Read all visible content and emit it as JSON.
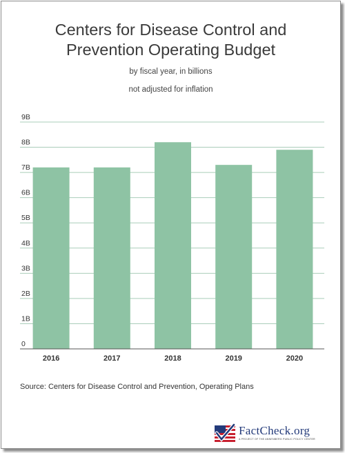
{
  "header": {
    "title_line1": "Centers for Disease Control and",
    "title_line2": "Prevention Operating Budget",
    "subtitle1": "by fiscal year, in billions",
    "subtitle2": "not adjusted for inflation"
  },
  "chart_data": {
    "type": "bar",
    "title": "Centers for Disease Control and Prevention Operating Budget",
    "categories": [
      "2016",
      "2017",
      "2018",
      "2019",
      "2020"
    ],
    "values": [
      7.2,
      7.2,
      8.2,
      7.3,
      7.9
    ],
    "y_ticks": [
      {
        "value": 0,
        "label": "0"
      },
      {
        "value": 1,
        "label": "1B"
      },
      {
        "value": 2,
        "label": "2B"
      },
      {
        "value": 3,
        "label": "3B"
      },
      {
        "value": 4,
        "label": "4B"
      },
      {
        "value": 5,
        "label": "5B"
      },
      {
        "value": 6,
        "label": "6B"
      },
      {
        "value": 7,
        "label": "7B"
      },
      {
        "value": 8,
        "label": "8B"
      },
      {
        "value": 9,
        "label": "9B"
      }
    ],
    "ylim": [
      0,
      9
    ],
    "grid": true,
    "bar_color": "#8ec3a4",
    "grid_color": "#a9cdb9"
  },
  "footer": {
    "source": "Source: Centers for Disease Control and Prevention, Operating Plans",
    "logo_text": "FactCheck.org",
    "logo_tagline": "A PROJECT OF THE ANNENBERG PUBLIC POLICY CENTER"
  },
  "colors": {
    "logo_blue": "#233a7a",
    "logo_red": "#c8202f"
  }
}
